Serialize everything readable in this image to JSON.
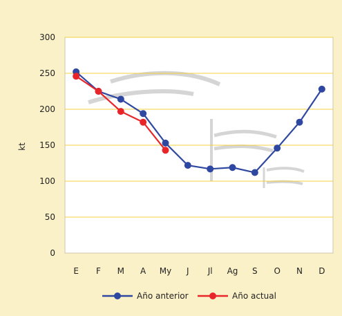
{
  "chart_data": {
    "type": "line",
    "title": "",
    "xlabel": "",
    "ylabel": "kt",
    "categories": [
      "E",
      "F",
      "M",
      "A",
      "My",
      "J",
      "Jl",
      "Ag",
      "S",
      "O",
      "N",
      "D"
    ],
    "yticks": [
      "0",
      "50",
      "100",
      "150",
      "200",
      "250",
      "300"
    ],
    "ylim": [
      0,
      300
    ],
    "grid": true,
    "legend_position": "bottom",
    "series": [
      {
        "name": "Año anterior",
        "color": "#2e47a0",
        "values": [
          252,
          225,
          214,
          194,
          153,
          122,
          117,
          119,
          112,
          146,
          182,
          228
        ]
      },
      {
        "name": "Año actual",
        "color": "#e8262a",
        "values": [
          246,
          225,
          197,
          182,
          143,
          null,
          null,
          null,
          null,
          null,
          null,
          null
        ]
      }
    ],
    "colors": {
      "page_background": "#fbf1c8",
      "plot_background": "#ffffff",
      "grid_line": "#f0d040"
    }
  }
}
